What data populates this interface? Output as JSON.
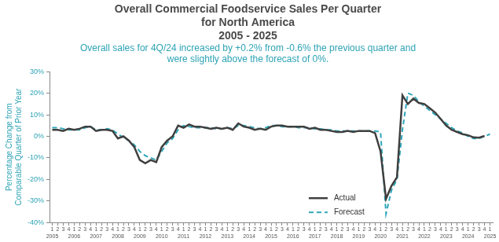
{
  "chart_data": {
    "type": "line",
    "title": [
      "Overall Commercial Foodservice Sales Per Quarter",
      "for North America"
    ],
    "subtitle": "2005 - 2025",
    "annotation": [
      "Overall sales for 4Q/24 increased by +0.2% from -0.6% the previous quarter and",
      "were slightly above the forecast of 0%."
    ],
    "y_label": [
      "Percentage Change from",
      "Comparable Quarter of Prior Year"
    ],
    "categories": [
      [
        "1",
        "2005"
      ],
      "2",
      "3",
      "4",
      [
        "1",
        "2006"
      ],
      "2",
      "3",
      "4",
      [
        "1",
        "2007"
      ],
      "2",
      "3",
      "4",
      [
        "1",
        "2008"
      ],
      "2",
      "3",
      "4",
      [
        "1",
        "2009"
      ],
      "2",
      "3",
      "4",
      [
        "1",
        "2010"
      ],
      "2",
      "3",
      "4",
      [
        "1",
        "2011"
      ],
      "2",
      "3",
      "4",
      [
        "1",
        "2012"
      ],
      "2",
      "3",
      "4",
      [
        "1",
        "2013"
      ],
      "2",
      "3",
      "4",
      [
        "1",
        "2014"
      ],
      "2",
      "3",
      "4",
      [
        "1",
        "2015"
      ],
      "2",
      "3",
      "4",
      [
        "1",
        "2016"
      ],
      "2",
      "3",
      "4",
      [
        "1",
        "2017"
      ],
      "2",
      "3",
      "4",
      [
        "1",
        "2018"
      ],
      "2",
      "3",
      "4",
      [
        "1",
        "2019"
      ],
      "2",
      "3",
      "4",
      [
        "1",
        "2020"
      ],
      "2",
      "3",
      "4",
      [
        "1",
        "2021"
      ],
      "2",
      "3",
      "4",
      [
        "1",
        "2022"
      ],
      "2",
      "3",
      "4",
      [
        "1",
        "2023"
      ],
      "2",
      "3",
      "4",
      [
        "1",
        "2024"
      ],
      "2",
      "3",
      "4",
      [
        "1",
        "2025"
      ]
    ],
    "series": [
      {
        "name": "Actual",
        "color": "#3f3f3f",
        "line_style": "solid",
        "values": [
          3,
          3,
          2.5,
          3.5,
          3,
          3.5,
          4.5,
          4.5,
          2.5,
          3,
          3,
          2.5,
          -1,
          0,
          -2,
          -5,
          -11,
          -12.5,
          -11,
          -12,
          -5,
          -2,
          0,
          5,
          4,
          5.5,
          4.5,
          4.5,
          4,
          3.5,
          4,
          3.5,
          4,
          3,
          6,
          4.5,
          4,
          3,
          3.5,
          3,
          4.5,
          5,
          5,
          4.5,
          4.5,
          4.5,
          4.5,
          3.5,
          4,
          3,
          3,
          2.5,
          2,
          2,
          2.5,
          2,
          2.5,
          2.5,
          2.5,
          1.5,
          -7,
          -29,
          -23,
          -19,
          19,
          15,
          17.5,
          15.5,
          15,
          13,
          11,
          8,
          5,
          3,
          2,
          1,
          0.5,
          -0.5,
          -0.6,
          0.2,
          null
        ]
      },
      {
        "name": "Forecast",
        "color": "#2ea6b8",
        "line_style": "dashed",
        "values": [
          4,
          4,
          3.5,
          3,
          3,
          3,
          4,
          4.5,
          3,
          3,
          3.5,
          3,
          1,
          -0.5,
          -2,
          -4,
          -7,
          -9,
          -10,
          -11,
          -7,
          -3,
          -1,
          3,
          5,
          4.5,
          4,
          4,
          4,
          4,
          3.5,
          3.5,
          4,
          3.5,
          5,
          5,
          4.5,
          4,
          3.5,
          4,
          5,
          5,
          4.5,
          4.5,
          4.5,
          4,
          4,
          4,
          3.5,
          3.5,
          3,
          3,
          2.5,
          2.5,
          2.5,
          2.5,
          2.5,
          2.5,
          2.5,
          2.5,
          2,
          -36,
          -25,
          -20,
          3,
          20,
          19,
          16,
          14,
          12,
          10,
          8,
          6,
          4,
          2.5,
          1.5,
          0,
          -1,
          -1,
          0,
          1
        ]
      }
    ],
    "ylim": [
      -40,
      30
    ],
    "yticks": [
      {
        "value": -40,
        "label": "-40%"
      },
      {
        "value": -30,
        "label": "-30%"
      },
      {
        "value": -20,
        "label": "-20%"
      },
      {
        "value": -10,
        "label": "-10%"
      },
      {
        "value": 0,
        "label": "0%"
      },
      {
        "value": 10,
        "label": "10%"
      },
      {
        "value": 20,
        "label": "20%"
      },
      {
        "value": 30,
        "label": "30%"
      }
    ],
    "grid": false,
    "legend": "bottom right"
  }
}
